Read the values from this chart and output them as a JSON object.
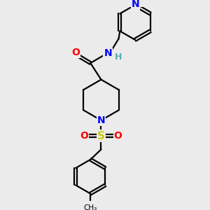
{
  "bg_color": "#ebebeb",
  "bond_color": "#000000",
  "N_color": "#0000ff",
  "O_color": "#ff0000",
  "S_color": "#cccc00",
  "H_color": "#5aacac",
  "C_color": "#000000",
  "line_width": 1.6,
  "fig_size": [
    3.0,
    3.0
  ],
  "dpi": 100,
  "xlim": [
    0,
    10
  ],
  "ylim": [
    0,
    10
  ]
}
